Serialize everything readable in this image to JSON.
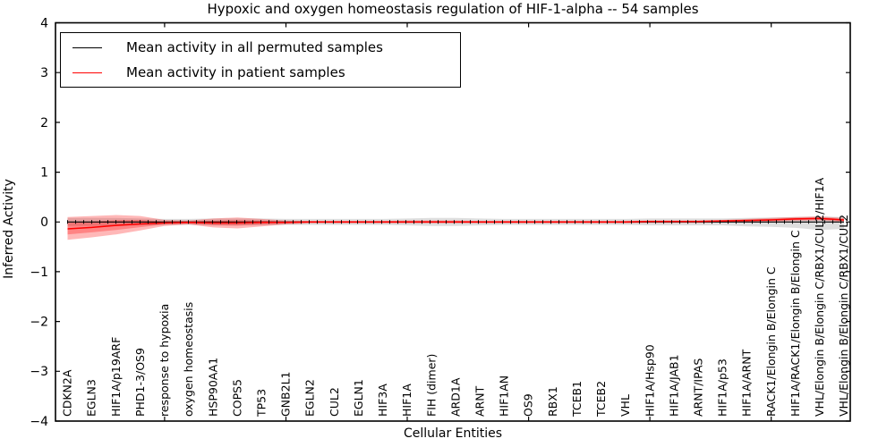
{
  "figure": {
    "title": "Hypoxic and oxygen homeostasis regulation of HIF-1-alpha -- 54 samples",
    "xlabel": "Cellular Entities",
    "ylabel": "Inferred Activity"
  },
  "legend": {
    "entries": [
      {
        "label": "Mean activity in all permuted samples",
        "color": "#000000"
      },
      {
        "label": "Mean activity in patient samples",
        "color": "#ff0000"
      }
    ]
  },
  "chart_data": {
    "type": "line",
    "title": "Hypoxic and oxygen homeostasis regulation of HIF-1-alpha -- 54 samples",
    "xlabel": "Cellular Entities",
    "ylabel": "Inferred Activity",
    "ylim": [
      -4,
      4
    ],
    "yticks": [
      4,
      3,
      2,
      1,
      0,
      -1,
      -2,
      -3,
      -4
    ],
    "ytick_labels": [
      "4",
      "3",
      "2",
      "1",
      "0",
      "−1",
      "−2",
      "−3",
      "−4"
    ],
    "xtick_major_indices": [
      4,
      9,
      14,
      19,
      24,
      29
    ],
    "grid": false,
    "legend_position": "upper left",
    "categories": [
      "CDKN2A",
      "EGLN3",
      "HIF1A/p19ARF",
      "PHD1-3/OS9",
      "response to hypoxia",
      "oxygen homeostasis",
      "HSP90AA1",
      "COPS5",
      "TP53",
      "GNB2L1",
      "EGLN2",
      "CUL2",
      "EGLN1",
      "HIF3A",
      "HIF1A",
      "FIH (dimer)",
      "ARD1A",
      "ARNT",
      "HIF1AN",
      "OS9",
      "RBX1",
      "TCEB1",
      "TCEB2",
      "VHL",
      "HIF1A/Hsp90",
      "HIF1A/JAB1",
      "ARNT/IPAS",
      "HIF1A/p53",
      "HIF1A/ARNT",
      "RACK1/Elongin B/Elongin C",
      "HIF1A/RACK1/Elongin B/Elongin C",
      "VHL/Elongin B/Elongin C/RBX1/CUL2/HIF1A",
      "VHL/Elongin B/Elongin C/RBX1/CUL2"
    ],
    "series": [
      {
        "name": "Mean activity in all permuted samples",
        "color": "#000000",
        "band_alpha": 0.13,
        "values": [
          0,
          0,
          0,
          0,
          0,
          0,
          0,
          0,
          0,
          0,
          0,
          0,
          0,
          0,
          0,
          0,
          0,
          0,
          0,
          0,
          0,
          0,
          0,
          0,
          0,
          0,
          0,
          0,
          0,
          0,
          0,
          0,
          0
        ],
        "band_upper": [
          0.08,
          0.08,
          0.08,
          0.07,
          0.06,
          0.06,
          0.07,
          0.07,
          0.07,
          0.06,
          0.06,
          0.06,
          0.06,
          0.06,
          0.07,
          0.08,
          0.08,
          0.07,
          0.06,
          0.06,
          0.06,
          0.06,
          0.06,
          0.06,
          0.07,
          0.07,
          0.07,
          0.07,
          0.08,
          0.09,
          0.1,
          0.11,
          0.1
        ],
        "band_lower": [
          -0.08,
          -0.08,
          -0.08,
          -0.07,
          -0.06,
          -0.06,
          -0.07,
          -0.07,
          -0.07,
          -0.06,
          -0.06,
          -0.06,
          -0.06,
          -0.06,
          -0.07,
          -0.08,
          -0.08,
          -0.07,
          -0.06,
          -0.06,
          -0.06,
          -0.06,
          -0.06,
          -0.06,
          -0.07,
          -0.07,
          -0.07,
          -0.07,
          -0.09,
          -0.1,
          -0.12,
          -0.16,
          -0.14
        ]
      },
      {
        "name": "Mean activity in patient samples",
        "color": "#ff0000",
        "band_alpha": 0.28,
        "values": [
          -0.14,
          -0.11,
          -0.07,
          -0.04,
          -0.02,
          -0.01,
          -0.02,
          -0.02,
          -0.01,
          -0.01,
          0,
          0,
          0,
          0,
          0,
          0,
          0,
          0,
          0,
          0,
          0,
          0,
          0,
          0,
          0.01,
          0.01,
          0.01,
          0.02,
          0.03,
          0.04,
          0.06,
          0.07,
          0.04
        ],
        "band_upper": [
          0.1,
          0.12,
          0.14,
          0.12,
          0.04,
          0.03,
          0.07,
          0.09,
          0.06,
          0.03,
          0.02,
          0.02,
          0.02,
          0.02,
          0.03,
          0.03,
          0.03,
          0.02,
          0.02,
          0.02,
          0.02,
          0.02,
          0.02,
          0.02,
          0.03,
          0.03,
          0.03,
          0.04,
          0.06,
          0.08,
          0.1,
          0.11,
          0.08
        ],
        "band_lower": [
          -0.36,
          -0.31,
          -0.25,
          -0.17,
          -0.08,
          -0.05,
          -0.11,
          -0.13,
          -0.09,
          -0.05,
          -0.03,
          -0.03,
          -0.03,
          -0.03,
          -0.03,
          -0.03,
          -0.03,
          -0.03,
          -0.03,
          -0.03,
          -0.03,
          -0.03,
          -0.03,
          -0.03,
          -0.02,
          -0.02,
          -0.02,
          -0.01,
          0.0,
          0.01,
          0.02,
          0.03,
          0.0
        ]
      }
    ]
  }
}
